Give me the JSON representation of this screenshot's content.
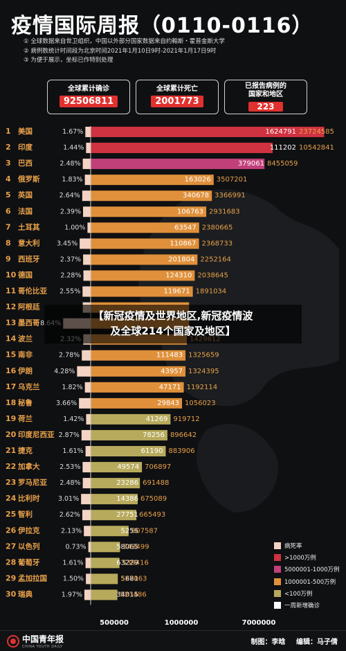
{
  "title": "疫情国际周报（0110-0116）",
  "notes": [
    "① 全球数据来自世卫组织，中国以外部分国家数据来自约翰斯・霍普金斯大学",
    "② 病例数统计时间段为北京时间2021年1月10日9时-2021年1月17日9时",
    "③ 为便于展示，坐标已作特别处理"
  ],
  "kpis": {
    "cases": {
      "label": "全球累计确诊",
      "value": "92506811"
    },
    "deaths": {
      "label": "全球累计死亡",
      "value": "2001773"
    },
    "reported": {
      "label_line1": "已报告病例的",
      "label_line2": "国家和地区",
      "value": "223"
    }
  },
  "overlay": {
    "line1": "【新冠疫情及世界地区,新冠疫情波",
    "line2": "及全球214个国家及地区】"
  },
  "legend": [
    {
      "label": "病死率",
      "color": "#f3d3c3"
    },
    {
      "label": ">1000万例",
      "color": "#cf3240"
    },
    {
      "label": "5000001-1000万例",
      "color": "#c2407a"
    },
    {
      "label": "1000001-500万例",
      "color": "#e0903a"
    },
    {
      "label": "<100万例",
      "color": "#b7aa5c"
    },
    {
      "label": "一周新增确诊",
      "color": "#ffffff"
    }
  ],
  "footer": {
    "brand": "中国青年报",
    "brand_sub": "CHINA YOUTH DAILY",
    "credit1_label": "制图：",
    "credit1_name": "李晗",
    "credit2_label": "编辑：",
    "credit2_name": "马子倩"
  },
  "chart_data": {
    "type": "bar",
    "xticks": [
      "500000",
      "1000000",
      "7000000"
    ],
    "series_colors": {
      "over_10m": "#cf3240",
      "5m_10m": "#c2407a",
      "1m_5m": "#e0903a",
      "under_1m": "#b7aa5c",
      "fatality": "#f3d3c3"
    },
    "rows": [
      {
        "rank": "1",
        "country": "美国",
        "fatality": "1.67%",
        "fatality_value": 1.67,
        "new_cases": "1624791",
        "total": "23724585",
        "tier": "over_10m"
      },
      {
        "rank": "2",
        "country": "印度",
        "fatality": "1.44%",
        "fatality_value": 1.44,
        "new_cases": "111202",
        "total": "10542841",
        "tier": "over_10m"
      },
      {
        "rank": "3",
        "country": "巴西",
        "fatality": "2.48%",
        "fatality_value": 2.48,
        "new_cases": "379061",
        "total": "8455059",
        "tier": "5m_10m"
      },
      {
        "rank": "4",
        "country": "俄罗斯",
        "fatality": "1.83%",
        "fatality_value": 1.83,
        "new_cases": "163026",
        "total": "3507201",
        "tier": "1m_5m"
      },
      {
        "rank": "5",
        "country": "英国",
        "fatality": "2.64%",
        "fatality_value": 2.64,
        "new_cases": "340678",
        "total": "3366991",
        "tier": "1m_5m"
      },
      {
        "rank": "6",
        "country": "法国",
        "fatality": "2.39%",
        "fatality_value": 2.39,
        "new_cases": "106763",
        "total": "2931683",
        "tier": "1m_5m"
      },
      {
        "rank": "7",
        "country": "土耳其",
        "fatality": "1.00%",
        "fatality_value": 1.0,
        "new_cases": "63547",
        "total": "2380665",
        "tier": "1m_5m"
      },
      {
        "rank": "8",
        "country": "意大利",
        "fatality": "3.45%",
        "fatality_value": 3.45,
        "new_cases": "110867",
        "total": "2368733",
        "tier": "1m_5m"
      },
      {
        "rank": "9",
        "country": "西班牙",
        "fatality": "2.37%",
        "fatality_value": 2.37,
        "new_cases": "201804",
        "total": "2252164",
        "tier": "1m_5m"
      },
      {
        "rank": "10",
        "country": "德国",
        "fatality": "2.28%",
        "fatality_value": 2.28,
        "new_cases": "124310",
        "total": "2038645",
        "tier": "1m_5m"
      },
      {
        "rank": "11",
        "country": "哥伦比亚",
        "fatality": "2.55%",
        "fatality_value": 2.55,
        "new_cases": "119671",
        "total": "1891034",
        "tier": "1m_5m"
      },
      {
        "rank": "12",
        "country": "阿根廷",
        "fatality": "",
        "fatality_value": 2.48,
        "new_cases": "",
        "total": "",
        "tier": "1m_5m"
      },
      {
        "rank": "13",
        "country": "墨西哥",
        "fatality": "8.64%",
        "fatality_value": 8.64,
        "new_cases": "",
        "total": "",
        "tier": "1m_5m"
      },
      {
        "rank": "14",
        "country": "波兰",
        "fatality": "2.32%",
        "fatality_value": 2.32,
        "new_cases": "",
        "total": "1429612",
        "tier": "1m_5m"
      },
      {
        "rank": "15",
        "country": "南非",
        "fatality": "2.78%",
        "fatality_value": 2.78,
        "new_cases": "111483",
        "total": "1325659",
        "tier": "1m_5m"
      },
      {
        "rank": "16",
        "country": "伊朗",
        "fatality": "4.28%",
        "fatality_value": 4.28,
        "new_cases": "43957",
        "total": "1324395",
        "tier": "1m_5m"
      },
      {
        "rank": "17",
        "country": "乌克兰",
        "fatality": "1.82%",
        "fatality_value": 1.82,
        "new_cases": "47171",
        "total": "1192114",
        "tier": "1m_5m"
      },
      {
        "rank": "18",
        "country": "秘鲁",
        "fatality": "3.66%",
        "fatality_value": 3.66,
        "new_cases": "29843",
        "total": "1056023",
        "tier": "1m_5m"
      },
      {
        "rank": "19",
        "country": "荷兰",
        "fatality": "1.42%",
        "fatality_value": 1.42,
        "new_cases": "41269",
        "total": "919712",
        "tier": "under_1m"
      },
      {
        "rank": "20",
        "country": "印度尼西亚",
        "fatality": "2.87%",
        "fatality_value": 2.87,
        "new_cases": "78256",
        "total": "896642",
        "tier": "under_1m"
      },
      {
        "rank": "21",
        "country": "捷克",
        "fatality": "1.61%",
        "fatality_value": 1.61,
        "new_cases": "61190",
        "total": "883906",
        "tier": "under_1m"
      },
      {
        "rank": "22",
        "country": "加拿大",
        "fatality": "2.53%",
        "fatality_value": 2.53,
        "new_cases": "49574",
        "total": "706897",
        "tier": "under_1m"
      },
      {
        "rank": "23",
        "country": "罗马尼亚",
        "fatality": "2.48%",
        "fatality_value": 2.48,
        "new_cases": "23286",
        "total": "691488",
        "tier": "under_1m"
      },
      {
        "rank": "24",
        "country": "比利时",
        "fatality": "3.01%",
        "fatality_value": 3.01,
        "new_cases": "14386",
        "total": "675089",
        "tier": "under_1m"
      },
      {
        "rank": "25",
        "country": "智利",
        "fatality": "2.62%",
        "fatality_value": 2.62,
        "new_cases": "27751",
        "total": "665493",
        "tier": "under_1m"
      },
      {
        "rank": "26",
        "country": "伊拉克",
        "fatality": "2.13%",
        "fatality_value": 2.13,
        "new_cases": "5256",
        "total": "607587",
        "tier": "under_1m"
      },
      {
        "rank": "27",
        "country": "以色列",
        "fatality": "0.73%",
        "fatality_value": 0.73,
        "new_cases": "58065",
        "total": "543499",
        "tier": "under_1m"
      },
      {
        "rank": "28",
        "country": "葡萄牙",
        "fatality": "1.61%",
        "fatality_value": 1.61,
        "new_cases": "63229",
        "total": "539416",
        "tier": "under_1m"
      },
      {
        "rank": "29",
        "country": "孟加拉国",
        "fatality": "1.50%",
        "fatality_value": 1.5,
        "new_cases": "5681",
        "total": "527063",
        "tier": "under_1m"
      },
      {
        "rank": "30",
        "country": "瑞典",
        "fatality": "1.97%",
        "fatality_value": 1.97,
        "new_cases": "34015",
        "total": "523486",
        "tier": "under_1m"
      }
    ]
  }
}
